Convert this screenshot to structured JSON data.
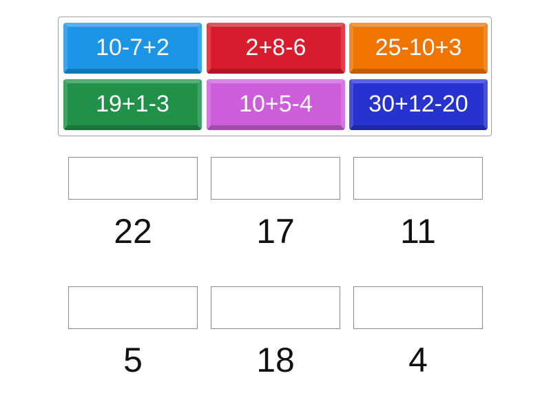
{
  "tiles": [
    {
      "label": "10-7+2",
      "color": "#1c95e6"
    },
    {
      "label": "2+8-6",
      "color": "#d81c2e"
    },
    {
      "label": "25-10+3",
      "color": "#f07400"
    },
    {
      "label": "19+1-3",
      "color": "#21914a"
    },
    {
      "label": "10+5-4",
      "color": "#cc5fd9"
    },
    {
      "label": "30+12-20",
      "color": "#2733cf"
    }
  ],
  "targets": [
    {
      "answer": "22"
    },
    {
      "answer": "17"
    },
    {
      "answer": "11"
    },
    {
      "answer": "5"
    },
    {
      "answer": "18"
    },
    {
      "answer": "4"
    }
  ]
}
